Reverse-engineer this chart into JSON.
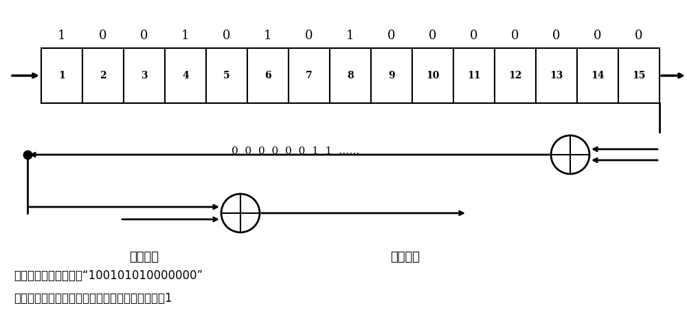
{
  "bits_top": [
    "1",
    "0",
    "0",
    "1",
    "0",
    "1",
    "0",
    "1",
    "0",
    "0",
    "0",
    "0",
    "0",
    "0",
    "0"
  ],
  "cell_labels": [
    "1",
    "2",
    "3",
    "4",
    "5",
    "6",
    "7",
    "8",
    "9",
    "10",
    "11",
    "12",
    "13",
    "14",
    "15"
  ],
  "middle_text": "0  0  0  0  0  0  1  1  ……",
  "data_input_label": "数据输入",
  "data_output_label": "数据输出",
  "caption_line1": "单数据源：初始状态为“100101010000000”",
  "caption_line2": "其中最左边的比特对应数据的低位，即移位寄存器1",
  "bg_color": "#ffffff",
  "line_color": "#000000",
  "text_color": "#000000",
  "fig_width": 10.0,
  "fig_height": 4.8,
  "dpi": 100
}
